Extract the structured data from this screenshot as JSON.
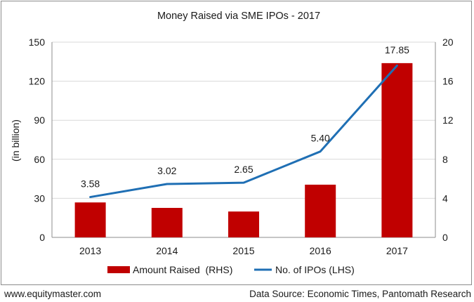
{
  "chart_data": {
    "type": "bar+line",
    "title": "Money Raised via SME IPOs - 2017",
    "ylabel": "(in billion)",
    "categories": [
      "2013",
      "2014",
      "2015",
      "2016",
      "2017"
    ],
    "left_axis": {
      "ylim": [
        0,
        150
      ],
      "ticks": [
        0,
        30,
        60,
        90,
        120,
        150
      ],
      "tick_labels": [
        "0",
        "30",
        "60",
        "90",
        "120",
        "150"
      ]
    },
    "right_axis": {
      "ylim": [
        0,
        20
      ],
      "ticks": [
        0,
        4,
        8,
        12,
        16,
        20
      ],
      "tick_labels": [
        "0",
        "4",
        "8",
        "12",
        "16",
        "20"
      ]
    },
    "series": [
      {
        "name": "Amount Raised  (RHS)",
        "type": "bar",
        "axis": "right",
        "color": "#c00000",
        "values": [
          3.58,
          3.02,
          2.65,
          5.4,
          17.85
        ],
        "data_labels": [
          "3.58",
          "3.02",
          "2.65",
          "5.40",
          "17.85"
        ]
      },
      {
        "name": "No. of IPOs (LHS)",
        "type": "line",
        "axis": "left",
        "color": "#1f6fb4",
        "values": [
          31,
          41,
          42,
          66,
          132
        ]
      }
    ],
    "legend_position": "bottom"
  },
  "footer": {
    "source_left": "www.equitymaster.com",
    "source_right": "Data Source: Economic Times, Pantomath Research"
  }
}
